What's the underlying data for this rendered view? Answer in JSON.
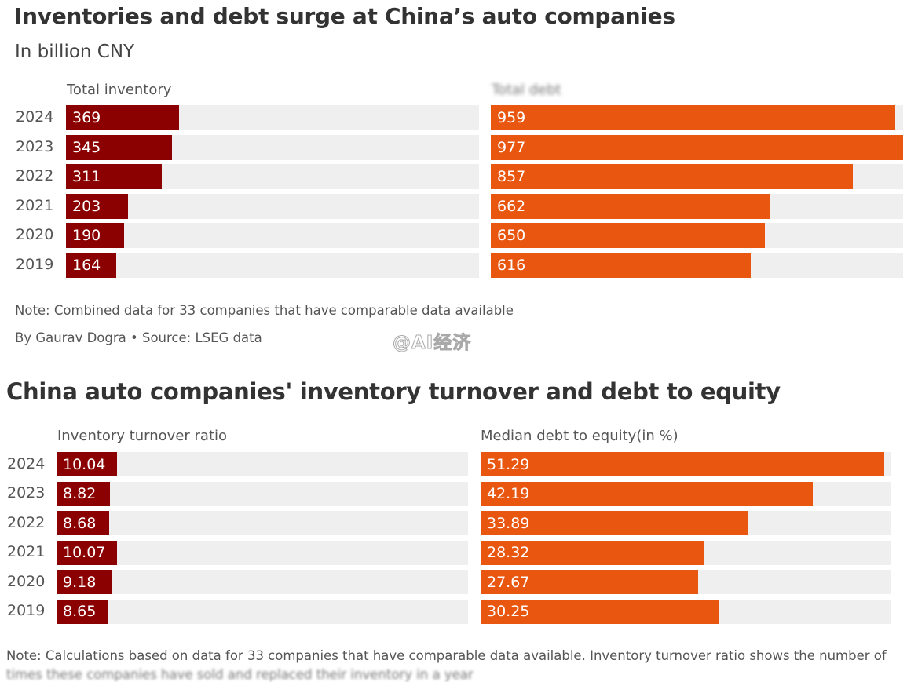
{
  "chart_data": [
    {
      "type": "bar",
      "orientation": "horizontal",
      "title": "Inventories and debt surge at China’s auto companies",
      "subtitle": "In billion CNY",
      "categories": [
        "2024",
        "2023",
        "2022",
        "2021",
        "2020",
        "2019"
      ],
      "series": [
        {
          "name": "Total inventory",
          "values": [
            369,
            345,
            311,
            203,
            190,
            164
          ],
          "color": "#8b0000"
        },
        {
          "name": "Total debt",
          "values": [
            959,
            977,
            857,
            662,
            650,
            616
          ],
          "color": "#e8560f"
        }
      ],
      "note": "Note: Combined data for 33 companies that have comparable data available",
      "byline": "By Gaurav Dogra • Source: LSEG data"
    },
    {
      "type": "bar",
      "orientation": "horizontal",
      "title": "China auto companies' inventory turnover and debt to equity",
      "categories": [
        "2024",
        "2023",
        "2022",
        "2021",
        "2020",
        "2019"
      ],
      "series": [
        {
          "name": "Inventory turnover ratio",
          "values": [
            10.04,
            8.82,
            8.68,
            10.07,
            9.18,
            8.65
          ],
          "color": "#8b0000",
          "axis_max": 68.3
        },
        {
          "name": "Median debt to equity(in %)",
          "values": [
            51.29,
            42.19,
            33.89,
            28.32,
            27.67,
            30.25
          ],
          "color": "#e8560f",
          "axis_max": 52.1
        }
      ],
      "note": "Note: Calculations based on data for 33 companies that have comparable data available. Inventory turnover ratio shows the number of",
      "note_cut": "times these companies have sold and replaced their inventory in a year"
    }
  ],
  "panel1_axis_max": [
    1345,
    977
  ],
  "watermark": "@AI经济"
}
